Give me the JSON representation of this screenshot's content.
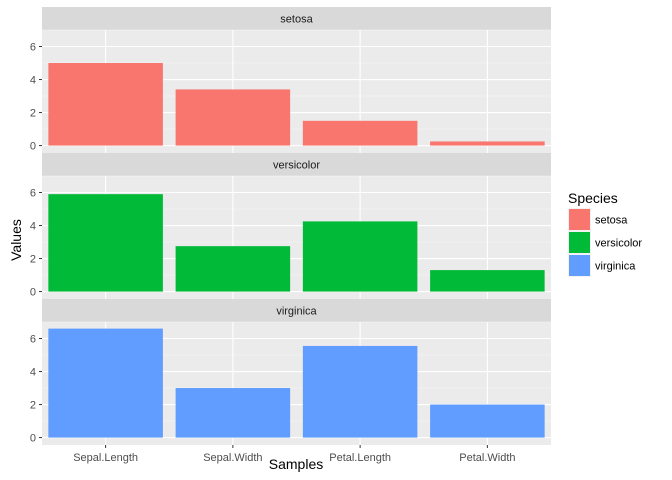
{
  "chart_data": {
    "type": "bar",
    "xlabel": "Samples",
    "ylabel": "Values",
    "categories": [
      "Sepal.Length",
      "Sepal.Width",
      "Petal.Length",
      "Petal.Width"
    ],
    "ylim": [
      0,
      7
    ],
    "yticks": [
      0,
      2,
      4,
      6
    ],
    "grid": true,
    "legend": {
      "title": "Species",
      "placement": "right",
      "entries": [
        "setosa",
        "versicolor",
        "virginica"
      ]
    },
    "panels": [
      {
        "name": "setosa",
        "color": "#F8766D",
        "values": [
          5.0,
          3.4,
          1.5,
          0.25
        ]
      },
      {
        "name": "versicolor",
        "color": "#00BA38",
        "values": [
          5.9,
          2.75,
          4.25,
          1.3
        ]
      },
      {
        "name": "virginica",
        "color": "#619CFF",
        "values": [
          6.6,
          3.0,
          5.55,
          2.0
        ]
      }
    ]
  }
}
